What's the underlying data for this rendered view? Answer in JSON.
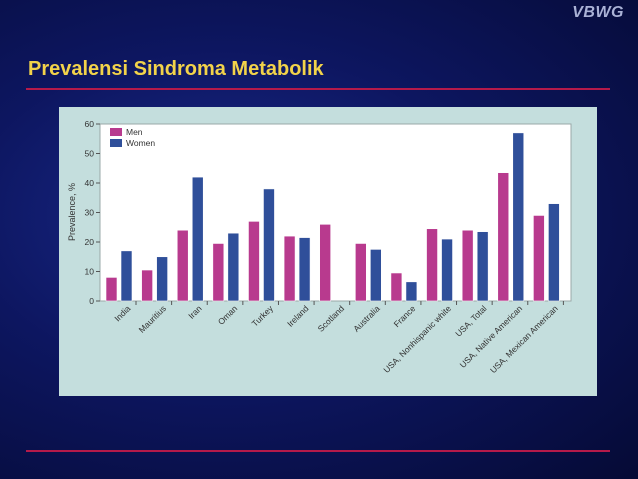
{
  "header": {
    "brand": "VBWG",
    "title": "Prevalensi Sindroma Metabolik"
  },
  "colors": {
    "men": "#b83a8e",
    "women": "#2f4f9a"
  },
  "chart_data": {
    "type": "bar",
    "title": "",
    "xlabel": "",
    "ylabel": "Prevalence, %",
    "ylim": [
      0,
      60
    ],
    "yticks": [
      0,
      10,
      20,
      30,
      40,
      50,
      60
    ],
    "grid": false,
    "legend_position": "top-left",
    "categories": [
      "India",
      "Mauritius",
      "Iran",
      "Oman",
      "Turkey",
      "Ireland",
      "Scotland",
      "Australia",
      "France",
      "USA, Nonhispanic white",
      "USA, Total",
      "USA, Native American",
      "USA, Mexican American"
    ],
    "series": [
      {
        "name": "Men",
        "values": [
          8,
          10.5,
          24,
          19.5,
          27,
          22,
          26,
          19.5,
          9.5,
          24.5,
          24,
          43.5,
          29
        ]
      },
      {
        "name": "Women",
        "values": [
          17,
          15,
          42,
          23,
          38,
          21.5,
          null,
          17.5,
          6.5,
          21,
          23.5,
          57,
          33
        ]
      }
    ]
  }
}
